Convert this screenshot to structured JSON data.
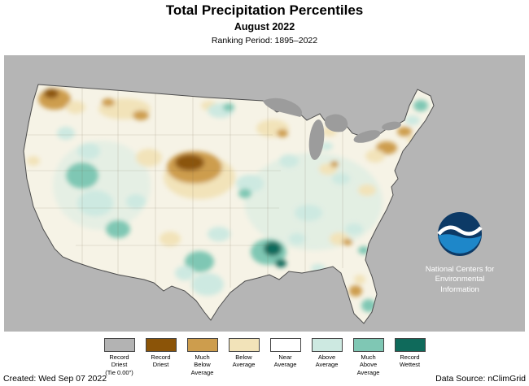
{
  "header": {
    "title": "Total Precipitation Percentiles",
    "subtitle": "August 2022",
    "ranking_period": "Ranking Period: 1895–2022"
  },
  "map": {
    "background_color": "#b5b5b5",
    "lakes_color": "#9c9c9c",
    "base_land_color": "#f6f3e6",
    "palette": {
      "record_driest_tie": "#b3b3b3",
      "record_driest": "#8b5408",
      "much_below_average": "#cd9d4d",
      "below_average": "#f2e3b9",
      "near_average": "#ffffff",
      "above_average": "#cde9e1",
      "much_above_average": "#7fc7b4",
      "record_wettest": "#0f6a5b"
    }
  },
  "noaa": {
    "org_lines": [
      "National Centers for",
      "Environmental",
      "Information"
    ],
    "logo_colors": {
      "navy": "#0d3a66",
      "light_blue": "#1e87c9"
    }
  },
  "legend": {
    "items": [
      {
        "label_lines": [
          "Record",
          "Driest",
          "(Tie 0.00\")"
        ],
        "color": "#b3b3b3"
      },
      {
        "label_lines": [
          "Record",
          "Driest"
        ],
        "color": "#8b5408"
      },
      {
        "label_lines": [
          "Much",
          "Below",
          "Average"
        ],
        "color": "#cd9d4d"
      },
      {
        "label_lines": [
          "Below",
          "Average"
        ],
        "color": "#f2e3b9"
      },
      {
        "label_lines": [
          "Near",
          "Average"
        ],
        "color": "#ffffff"
      },
      {
        "label_lines": [
          "Above",
          "Average"
        ],
        "color": "#cde9e1"
      },
      {
        "label_lines": [
          "Much",
          "Above",
          "Average"
        ],
        "color": "#7fc7b4"
      },
      {
        "label_lines": [
          "Record",
          "Wettest"
        ],
        "color": "#0f6a5b"
      }
    ]
  },
  "footer": {
    "created": "Created: Wed Sep 07 2022",
    "data_source": "Data Source: nClimGrid"
  }
}
